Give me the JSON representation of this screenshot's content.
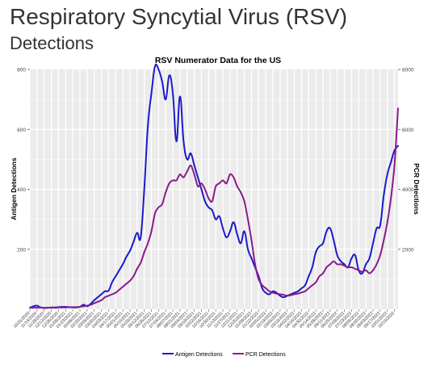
{
  "page": {
    "title": "Respiratory Syncytial Virus (RSV)",
    "subtitle": "Detections"
  },
  "chart_data": {
    "type": "line",
    "title": "RSV Numerator Data for the US",
    "ylabel": "Antigen Detections",
    "y2label": "PCR Detections",
    "ylim": [
      0,
      800
    ],
    "y2lim": [
      0,
      8000
    ],
    "yticks": [
      200,
      400,
      600,
      800
    ],
    "y2ticks": [
      2000,
      4000,
      6000,
      8000
    ],
    "grid": true,
    "legend_position": "bottom",
    "x": [
      "10/31/2020",
      "11/07/2020",
      "11/14/2020",
      "11/21/2020",
      "11/28/2020",
      "12/05/2020",
      "12/12/2020",
      "12/19/2020",
      "12/26/2020",
      "01/02/2021",
      "01/09/2021",
      "01/16/2021",
      "01/23/2021",
      "01/30/2021",
      "02/06/2021",
      "02/13/2021",
      "02/20/2021",
      "02/27/2021",
      "03/06/2021",
      "03/13/2021",
      "03/20/2021",
      "03/27/2021",
      "04/03/2021",
      "04/10/2021",
      "04/17/2021",
      "04/24/2021",
      "05/01/2021",
      "05/08/2021",
      "05/15/2021",
      "05/22/2021",
      "05/29/2021",
      "06/05/2021",
      "06/12/2021",
      "06/19/2021",
      "06/26/2021",
      "07/03/2021",
      "07/10/2021",
      "07/17/2021",
      "07/24/2021",
      "07/31/2021",
      "08/07/2021",
      "08/14/2021",
      "08/21/2021",
      "08/28/2021",
      "09/04/2021",
      "09/11/2021",
      "09/18/2021",
      "09/25/2021",
      "10/02/2021",
      "10/09/2021",
      "10/16/2021",
      "10/23/2021",
      "10/30/2021",
      "11/06/2021",
      "11/13/2021",
      "11/20/2021",
      "11/27/2021",
      "12/04/2021",
      "12/11/2021",
      "12/18/2021",
      "12/25/2021",
      "01/01/2022",
      "01/08/2022",
      "01/15/2022",
      "01/22/2022",
      "01/29/2022",
      "02/05/2022",
      "02/12/2022",
      "02/19/2022",
      "02/26/2022",
      "03/05/2022",
      "03/12/2022",
      "03/19/2022",
      "03/26/2022",
      "04/02/2022",
      "04/09/2022",
      "04/16/2022",
      "04/23/2022",
      "04/30/2022",
      "05/07/2022",
      "05/14/2022",
      "05/21/2022",
      "05/28/2022",
      "06/04/2022",
      "06/11/2022",
      "06/18/2022",
      "06/25/2022",
      "07/02/2022",
      "07/09/2022",
      "07/16/2022",
      "07/23/2022",
      "07/30/2022",
      "08/06/2022",
      "08/13/2022",
      "08/20/2022",
      "08/27/2022",
      "09/03/2022",
      "09/10/2022",
      "09/17/2022",
      "09/24/2022",
      "10/01/2022",
      "10/08/2022",
      "10/15/2022",
      "10/22/2022"
    ],
    "x_tick_labels": [
      "10/31/2020",
      "11/14/2020",
      "11/28/2020",
      "12/12/2020",
      "12/26/2020",
      "01/09/2021",
      "01/23/2021",
      "02/06/2021",
      "02/20/2021",
      "03/06/2021",
      "03/20/2021",
      "04/03/2021",
      "04/17/2021",
      "05/01/2021",
      "05/15/2021",
      "05/29/2021",
      "06/12/2021",
      "06/26/2021",
      "07/10/2021",
      "07/24/2021",
      "08/07/2021",
      "08/21/2021",
      "09/04/2021",
      "09/18/2021",
      "10/02/2021",
      "10/16/2021",
      "10/30/2021",
      "11/13/2021",
      "11/27/2021",
      "12/11/2021",
      "12/25/2021",
      "01/08/2022",
      "01/22/2022",
      "02/05/2022",
      "02/19/2022",
      "03/05/2022",
      "03/19/2022",
      "04/02/2022",
      "04/16/2022",
      "04/30/2022",
      "05/14/2022",
      "05/28/2022",
      "06/11/2022",
      "06/25/2022",
      "07/09/2022",
      "07/23/2022",
      "08/06/2022",
      "08/20/2022",
      "09/03/2022",
      "09/17/2022",
      "10/01/2022",
      "10/15/2022"
    ],
    "series": [
      {
        "name": "Antigen Detections",
        "color": "#1a1acc",
        "axis": "left",
        "values": [
          5,
          10,
          12,
          6,
          4,
          5,
          6,
          6,
          7,
          8,
          8,
          7,
          6,
          6,
          8,
          15,
          10,
          18,
          30,
          40,
          50,
          60,
          62,
          90,
          110,
          130,
          150,
          175,
          195,
          225,
          255,
          240,
          400,
          610,
          720,
          810,
          800,
          760,
          700,
          780,
          720,
          560,
          710,
          560,
          500,
          520,
          480,
          440,
          400,
          360,
          340,
          330,
          300,
          310,
          270,
          240,
          260,
          290,
          250,
          220,
          260,
          200,
          170,
          140,
          110,
          70,
          55,
          50,
          60,
          55,
          45,
          40,
          45,
          50,
          55,
          60,
          70,
          80,
          110,
          140,
          190,
          210,
          220,
          260,
          270,
          230,
          180,
          160,
          150,
          140,
          170,
          180,
          130,
          120,
          150,
          170,
          220,
          270,
          280,
          380,
          450,
          490,
          530,
          545
        ],
        "tension": 0.4
      },
      {
        "name": "PCR Detections",
        "color": "#8a1a8a",
        "axis": "right",
        "values": [
          50,
          50,
          50,
          60,
          50,
          50,
          50,
          50,
          60,
          60,
          60,
          70,
          70,
          70,
          80,
          100,
          120,
          150,
          200,
          250,
          300,
          400,
          450,
          500,
          550,
          650,
          750,
          850,
          950,
          1100,
          1350,
          1550,
          1900,
          2200,
          2600,
          3200,
          3400,
          3500,
          3900,
          4200,
          4300,
          4300,
          4500,
          4400,
          4600,
          4800,
          4500,
          4100,
          4200,
          4000,
          3700,
          3600,
          4100,
          4200,
          4300,
          4200,
          4500,
          4400,
          4100,
          3900,
          3600,
          3000,
          2300,
          1500,
          1000,
          800,
          700,
          600,
          550,
          520,
          500,
          480,
          450,
          470,
          500,
          520,
          560,
          600,
          700,
          800,
          900,
          1100,
          1200,
          1400,
          1500,
          1600,
          1500,
          1500,
          1450,
          1400,
          1400,
          1350,
          1300,
          1250,
          1300,
          1200,
          1300,
          1500,
          1800,
          2300,
          2900,
          3700,
          4800,
          6700
        ],
        "tension": 0.3
      }
    ]
  }
}
